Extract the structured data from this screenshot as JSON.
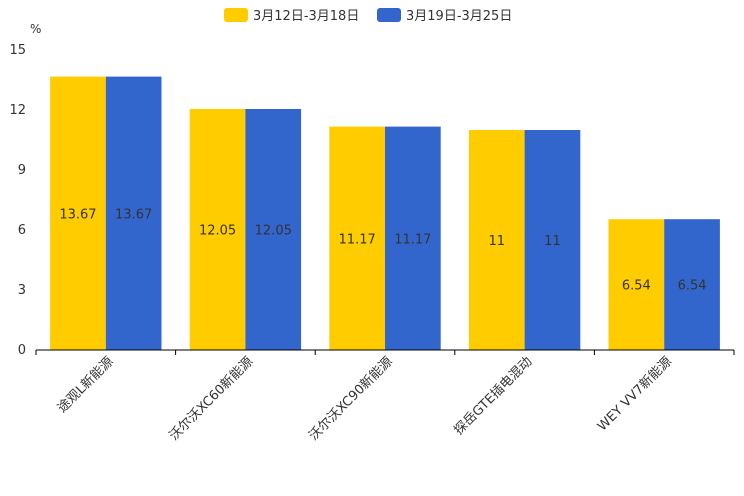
{
  "chart_data": {
    "type": "bar",
    "title": "",
    "xlabel": "",
    "ylabel": "%",
    "ylim": [
      0,
      15
    ],
    "yticks": [
      0,
      3,
      6,
      9,
      12,
      15
    ],
    "grid": false,
    "legend_position": "top-center",
    "categories": [
      "途观L新能源",
      "沃尔沃XC60新能源",
      "沃尔沃XC90新能源",
      "探岳GTE插电混动",
      "WEY VV7新能源"
    ],
    "series": [
      {
        "name": "3月12日-3月18日",
        "color": "#FFCC00",
        "values": [
          13.67,
          12.05,
          11.17,
          11,
          6.54
        ]
      },
      {
        "name": "3月19日-3月25日",
        "color": "#3366CC",
        "values": [
          13.67,
          12.05,
          11.17,
          11,
          6.54
        ]
      }
    ],
    "data_labels": [
      [
        "13.67",
        "12.05",
        "11.17",
        "11",
        "6.54"
      ],
      [
        "13.67",
        "12.05",
        "11.17",
        "11",
        "6.54"
      ]
    ]
  }
}
